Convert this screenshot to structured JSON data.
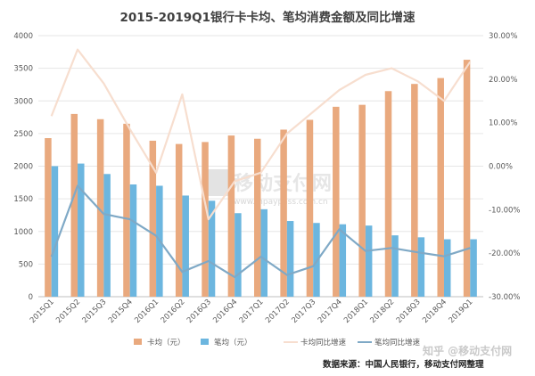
{
  "chart_data": {
    "type": "bar",
    "title": "2015-2019Q1银行卡卡均、笔均消费金额及同比增速",
    "categories": [
      "2015Q1",
      "2015Q2",
      "2015Q3",
      "2015Q4",
      "2016Q1",
      "2016Q2",
      "2016Q3",
      "2016Q4",
      "2017Q1",
      "2017Q2",
      "2017Q3",
      "2017Q4",
      "2018Q1",
      "2018Q2",
      "2018Q3",
      "2018Q4",
      "2019Q1"
    ],
    "y_left": {
      "range": [
        0,
        4000
      ],
      "ticks": [
        "0",
        "500",
        "1000",
        "1500",
        "2000",
        "2500",
        "3000",
        "3500",
        "4000"
      ]
    },
    "y_right": {
      "range": [
        -30,
        30
      ],
      "ticks": [
        "-30.00%",
        "-20.00%",
        "-10.00%",
        "0.00%",
        "10.00%",
        "20.00%",
        "30.00%"
      ]
    },
    "grid": true,
    "legend_position": "bottom",
    "series": [
      {
        "name": "卡均（元）",
        "type": "bar",
        "axis": "left",
        "color": "#E9A97E",
        "values": [
          2430,
          2800,
          2720,
          2650,
          2390,
          2340,
          2370,
          2470,
          2420,
          2560,
          2710,
          2910,
          2940,
          3150,
          3260,
          3350,
          3630
        ]
      },
      {
        "name": "笔均（元）",
        "type": "bar",
        "axis": "left",
        "color": "#6CB6DF",
        "values": [
          2000,
          2040,
          1880,
          1720,
          1700,
          1550,
          1470,
          1280,
          1340,
          1160,
          1130,
          1110,
          1090,
          940,
          910,
          880,
          880
        ]
      },
      {
        "name": "卡均同比增速",
        "type": "line",
        "axis": "right",
        "color": "#F7DECF",
        "values": [
          11.5,
          26.8,
          19.0,
          8.5,
          -1.5,
          16.5,
          -12.2,
          -3.5,
          -1.5,
          7.5,
          12.5,
          17.5,
          21.0,
          22.5,
          19.5,
          15.0,
          24.0
        ]
      },
      {
        "name": "笔均同比增速",
        "type": "line",
        "axis": "right",
        "color": "#7FA9C6",
        "values": [
          -20.8,
          -4.5,
          -11.0,
          -12.2,
          -16.0,
          -24.3,
          -21.8,
          -25.5,
          -20.8,
          -25.0,
          -23.0,
          -14.5,
          -19.5,
          -18.8,
          -19.8,
          -20.7,
          -18.8
        ]
      }
    ]
  },
  "watermark": {
    "logo_text": "移动支付网",
    "url": "www.mpaypass.com.cn"
  },
  "zhihu_watermark": "知乎 @移动支付网",
  "source_note": "数据来源：中国人民银行，移动支付网整理"
}
